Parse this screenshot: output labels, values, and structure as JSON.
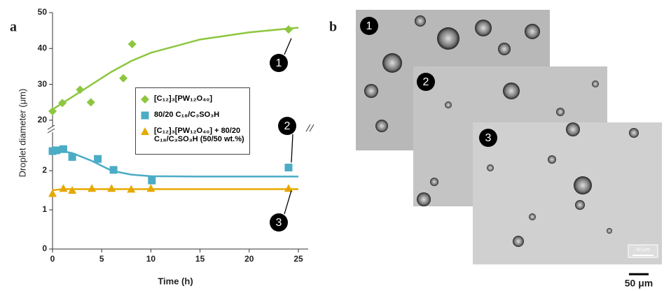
{
  "chart_data": [
    {
      "type": "scatter",
      "xlim": [
        0,
        25
      ],
      "ylim": [
        19,
        50
      ],
      "yticks": [
        20,
        30,
        40,
        50
      ],
      "series": [
        {
          "name": "[C₁₂]₃[PW₁₂O₄₀]",
          "color": "#8dc63f",
          "marker": "diamond",
          "x": [
            0,
            1,
            2.8,
            3.9,
            7.2,
            8.1,
            24
          ],
          "values": [
            22.5,
            24.8,
            28.5,
            25,
            31.7,
            41.2,
            45.3
          ],
          "fit": {
            "x": [
              0,
              2,
              4,
              6,
              8,
              10,
              15,
              20,
              25
            ],
            "values": [
              23,
              26.5,
              30,
              33.5,
              36.5,
              38.8,
              42.5,
              44.5,
              45.8
            ]
          }
        }
      ],
      "annotations": [
        "1"
      ]
    },
    {
      "type": "scatter",
      "xlim": [
        0,
        25
      ],
      "xticks": [
        0,
        5,
        10,
        15,
        20,
        25
      ],
      "ylim": [
        0,
        3
      ],
      "yticks": [
        0,
        1,
        2
      ],
      "x_label": "Time (h)",
      "y_label": "Droplet diameter (μm)",
      "series": [
        {
          "name": "80/20 C₁₈/C₃SO₃H",
          "color": "#4bacc6",
          "marker": "square",
          "x": [
            0,
            0.4,
            1.1,
            2,
            4.6,
            6.2,
            10.1,
            24
          ],
          "values": [
            2.5,
            2.52,
            2.55,
            2.35,
            2.3,
            2.02,
            1.75,
            2.08
          ],
          "fit": {
            "x": [
              0,
              2,
              4,
              6,
              8,
              10,
              15,
              25
            ],
            "values": [
              2.55,
              2.45,
              2.25,
              2.0,
              1.9,
              1.86,
              1.85,
              1.85
            ]
          }
        },
        {
          "name": "[C₁₂]₃[PW₁₂O₄₀] + 80/20 C₁₈/C₃SO₃H (50/50 wt.%)",
          "color": "#e6a800",
          "marker": "triangle",
          "x": [
            0,
            1.1,
            2,
            4,
            6,
            8,
            10,
            24
          ],
          "values": [
            1.42,
            1.55,
            1.5,
            1.55,
            1.55,
            1.53,
            1.55,
            1.55
          ],
          "fit": {
            "x": [
              0,
              1,
              25
            ],
            "values": [
              1.5,
              1.53,
              1.53
            ]
          }
        }
      ],
      "annotations": [
        "2",
        "3"
      ]
    }
  ],
  "figure": {
    "panel_labels": [
      "a",
      "b"
    ],
    "images": [
      "1",
      "2",
      "3"
    ],
    "inset_scale": "50 μm",
    "scale_bar": "50 μm"
  }
}
